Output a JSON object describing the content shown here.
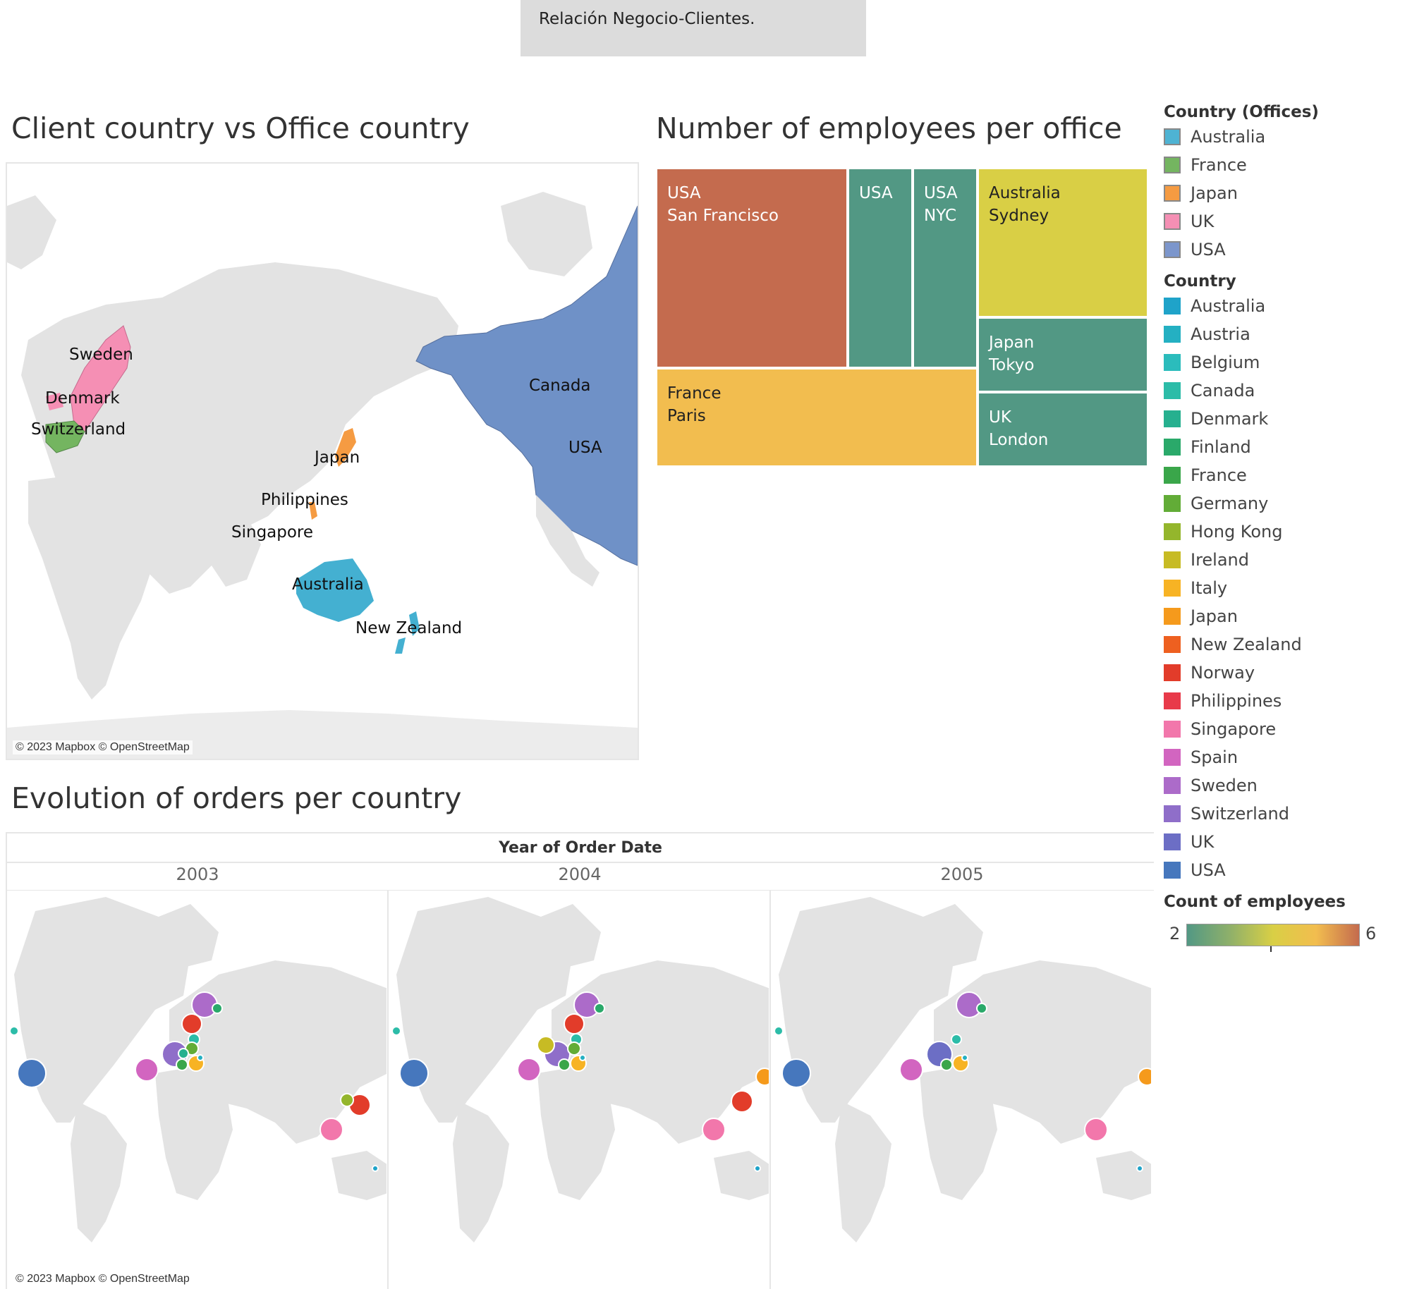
{
  "header": {
    "text": "Relación Negocio-Clientes."
  },
  "map_section": {
    "title": "Client country vs Office country",
    "copyright": "© 2023 Mapbox © OpenStreetMap",
    "labels": [
      "Sweden",
      "Denmark",
      "Switzerland",
      "Japan",
      "Philippines",
      "Singapore",
      "Canada",
      "USA",
      "Australia",
      "New Zealand"
    ]
  },
  "treemap_section": {
    "title": "Number of employees per office",
    "cells": [
      {
        "country": "USA",
        "city": "San Francisco",
        "count": 6,
        "color": "#c46b4e"
      },
      {
        "country": "USA",
        "city": "",
        "count": 2,
        "color": "#529884"
      },
      {
        "country": "USA",
        "city": "NYC",
        "count": 2,
        "color": "#529884"
      },
      {
        "country": "Australia",
        "city": "Sydney",
        "count": 4,
        "color": "#d9cf45"
      },
      {
        "country": "Japan",
        "city": "Tokyo",
        "count": 2,
        "color": "#529884"
      },
      {
        "country": "France",
        "city": "Paris",
        "count": 5,
        "color": "#f2bd4f"
      },
      {
        "country": "UK",
        "city": "London",
        "count": 2,
        "color": "#529884"
      }
    ]
  },
  "orders_section": {
    "title": "Evolution of orders per country",
    "axis_title": "Year of Order Date",
    "years": [
      "2003",
      "2004",
      "2005"
    ],
    "copyright": "© 2023 Mapbox © OpenStreetMap"
  },
  "legend_offices": {
    "title": "Country (Offices)",
    "items": [
      {
        "label": "Australia",
        "color": "#4eb3d3"
      },
      {
        "label": "France",
        "color": "#74b560"
      },
      {
        "label": "Japan",
        "color": "#f59b42"
      },
      {
        "label": "UK",
        "color": "#f58fb4"
      },
      {
        "label": "USA",
        "color": "#7c96cc"
      }
    ]
  },
  "legend_country": {
    "title": "Country",
    "items": [
      {
        "label": "Australia",
        "color": "#1fa3c9"
      },
      {
        "label": "Austria",
        "color": "#24b0c2"
      },
      {
        "label": "Belgium",
        "color": "#2bbcbc"
      },
      {
        "label": "Canada",
        "color": "#2cbca8"
      },
      {
        "label": "Denmark",
        "color": "#26b08f"
      },
      {
        "label": "Finland",
        "color": "#2aa96a"
      },
      {
        "label": "France",
        "color": "#3aa64a"
      },
      {
        "label": "Germany",
        "color": "#62ac37"
      },
      {
        "label": "Hong Kong",
        "color": "#94b62c"
      },
      {
        "label": "Ireland",
        "color": "#c7bb24"
      },
      {
        "label": "Italy",
        "color": "#f7b324"
      },
      {
        "label": "Japan",
        "color": "#f59a1c"
      },
      {
        "label": "New Zealand",
        "color": "#ee6020"
      },
      {
        "label": "Norway",
        "color": "#e23c2a"
      },
      {
        "label": "Philippines",
        "color": "#e83a4a"
      },
      {
        "label": "Singapore",
        "color": "#f277ab"
      },
      {
        "label": "Spain",
        "color": "#d265c0"
      },
      {
        "label": "Sweden",
        "color": "#ac6bc9"
      },
      {
        "label": "Switzerland",
        "color": "#8f6ec9"
      },
      {
        "label": "UK",
        "color": "#6c6ec5"
      },
      {
        "label": "USA",
        "color": "#4677bd"
      }
    ]
  },
  "legend_count": {
    "title": "Count of employees",
    "min": "2",
    "max": "6"
  }
}
